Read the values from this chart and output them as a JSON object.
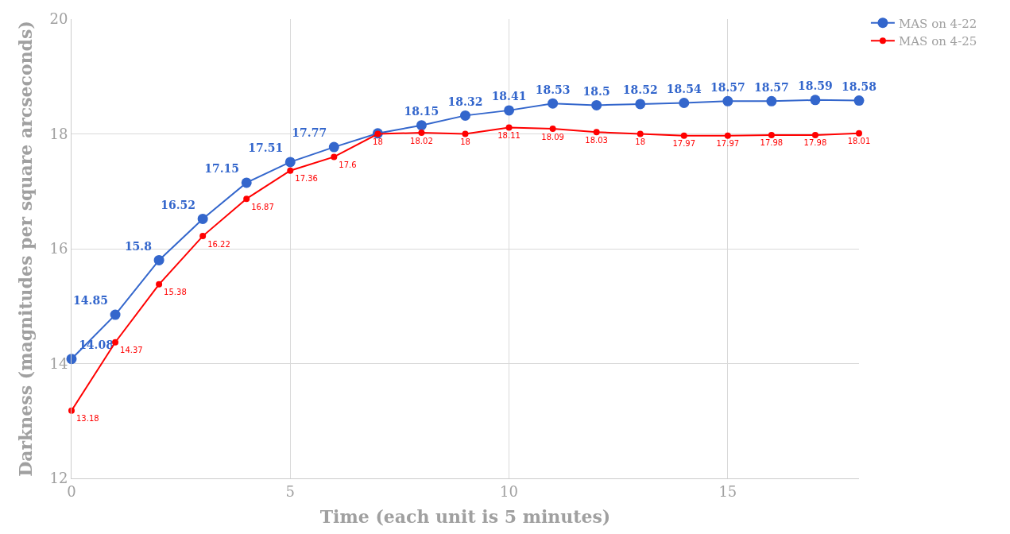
{
  "chart_data": {
    "type": "line",
    "xlabel": "Time (each unit is 5 minutes)",
    "ylabel": "Darkness (magnitudes per square arcseconds)",
    "x": [
      0,
      1,
      2,
      3,
      4,
      5,
      6,
      7,
      8,
      9,
      10,
      11,
      12,
      13,
      14,
      15,
      16,
      17,
      18
    ],
    "series": [
      {
        "name": "MAS on 4-22",
        "color": "#3366cc",
        "values": [
          14.08,
          14.85,
          15.8,
          16.52,
          17.15,
          17.51,
          17.77,
          18.01,
          18.15,
          18.32,
          18.41,
          18.53,
          18.5,
          18.52,
          18.54,
          18.57,
          18.57,
          18.59,
          18.58
        ],
        "value_labels": [
          "14.08",
          "14.85",
          "15.8",
          "16.52",
          "17.15",
          "17.51",
          "17.77",
          null,
          "18.15",
          "18.32",
          "18.41",
          "18.53",
          "18.5",
          "18.52",
          "18.54",
          "18.57",
          "18.57",
          "18.59",
          "18.58"
        ]
      },
      {
        "name": "MAS on 4-25",
        "color": "#ff0000",
        "values": [
          13.18,
          14.37,
          15.38,
          16.22,
          16.87,
          17.36,
          17.6,
          18,
          18.02,
          18,
          18.11,
          18.09,
          18.03,
          18,
          17.97,
          17.97,
          17.98,
          17.98,
          18.01
        ],
        "value_labels": [
          "13.18",
          "14.37",
          "15.38",
          "16.22",
          "16.87",
          "17.36",
          "17.6",
          "18",
          "18.02",
          "18",
          "18.11",
          "18.09",
          "18.03",
          "18",
          "17.97",
          "17.97",
          "17.98",
          "17.98",
          "18.01"
        ]
      }
    ],
    "xlim": [
      0,
      18
    ],
    "xticks": [
      0,
      5,
      10,
      15
    ],
    "ylim": [
      12,
      20
    ],
    "yticks": [
      12,
      14,
      16,
      18,
      20
    ],
    "grid": true,
    "legend": "top right",
    "marker": "circle",
    "line_style": "solid"
  }
}
